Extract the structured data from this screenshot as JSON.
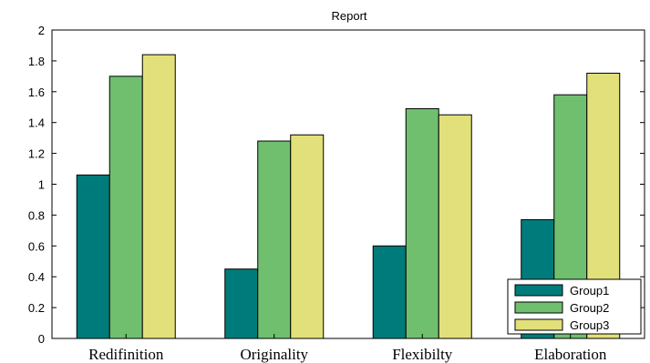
{
  "chart_data": {
    "type": "bar",
    "title": "Report",
    "categories": [
      "Redifinition",
      "Originality",
      "Flexibilty",
      "Elaboration"
    ],
    "series": [
      {
        "name": "Group1",
        "values": [
          1.06,
          0.45,
          0.6,
          0.77
        ],
        "color": "#007b7b"
      },
      {
        "name": "Group2",
        "values": [
          1.7,
          1.28,
          1.49,
          1.58
        ],
        "color": "#6fbf6f"
      },
      {
        "name": "Group3",
        "values": [
          1.84,
          1.32,
          1.45,
          1.72
        ],
        "color": "#e2e07a"
      }
    ],
    "ylim": [
      0,
      2
    ],
    "yticks": [
      "0",
      "0.2",
      "0.4",
      "0.6",
      "0.8",
      "1",
      "1.2",
      "1.4",
      "1.6",
      "1.8",
      "2"
    ],
    "xlabel": "",
    "ylabel": "",
    "grid": false,
    "legend_position": "bottom-right"
  }
}
